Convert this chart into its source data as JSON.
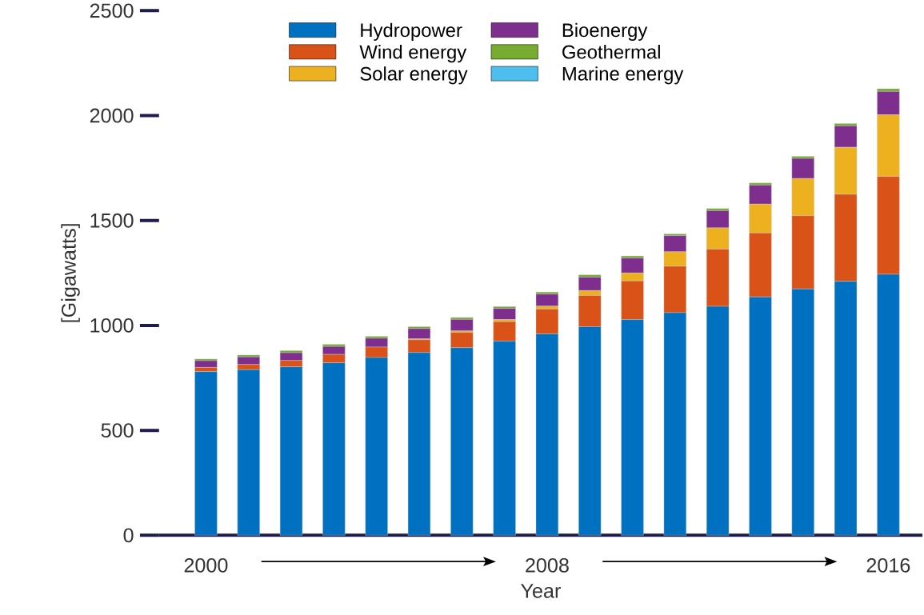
{
  "chart_data": {
    "type": "bar",
    "stacked": true,
    "xlabel": "Year",
    "ylabel": "[Gigawatts]",
    "categories": [
      "2000",
      null,
      null,
      null,
      null,
      null,
      null,
      null,
      "2008",
      null,
      null,
      null,
      null,
      null,
      null,
      null,
      "2016"
    ],
    "series": [
      {
        "name": "Hydropower",
        "color": "#0070c0",
        "values": [
          780,
          789,
          803,
          822,
          847,
          871,
          894,
          925,
          960,
          994,
          1028,
          1061,
          1091,
          1136,
          1174,
          1210,
          1244
        ]
      },
      {
        "name": "Wind energy",
        "color": "#d95319",
        "values": [
          20,
          25,
          30,
          40,
          50,
          61,
          73,
          93,
          118,
          149,
          184,
          221,
          273,
          305,
          349,
          415,
          466
        ]
      },
      {
        "name": "Solar energy",
        "color": "#edb120",
        "values": [
          null,
          null,
          null,
          null,
          null,
          4,
          7,
          10,
          14,
          23,
          38,
          69,
          101,
          137,
          177,
          224,
          294
        ]
      },
      {
        "name": "Bioenergy",
        "color": "#7e2f8e",
        "values": [
          32,
          36,
          37,
          38,
          42,
          49,
          55,
          53,
          57,
          64,
          71,
          77,
          82,
          91,
          96,
          102,
          111
        ]
      },
      {
        "name": "Geothermal",
        "color": "#77ac30",
        "values": [
          8,
          9,
          10,
          10,
          9,
          9,
          9,
          9,
          10,
          11,
          10,
          8,
          10,
          10,
          10,
          11,
          13
        ]
      },
      {
        "name": "Marine energy",
        "color": "#4dbeee",
        "values": [
          null,
          null,
          null,
          null,
          null,
          null,
          null,
          null,
          null,
          null,
          null,
          null,
          null,
          null,
          null,
          null,
          null
        ]
      }
    ],
    "ylim": [
      0,
      2500
    ],
    "yticks": [
      0,
      500,
      1000,
      1500,
      2000,
      2500
    ],
    "grid": false,
    "legend": "top"
  }
}
